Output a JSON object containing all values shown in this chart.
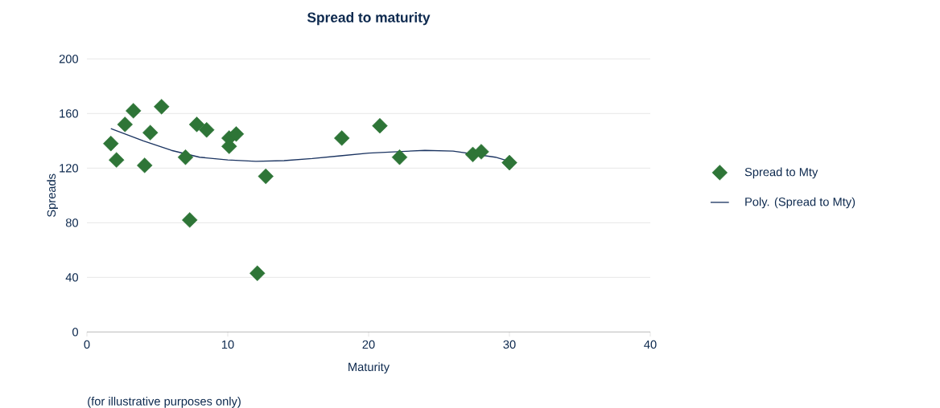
{
  "chart_data": {
    "type": "scatter",
    "title": "Spread to maturity",
    "xlabel": "Maturity",
    "ylabel": "Spreads",
    "annotations": [
      "(for illustrative purposes only)"
    ],
    "series": [
      {
        "name": "Spread to Mty",
        "color": "#2e7537",
        "marker": "diamond",
        "x": [
          1.7,
          2.1,
          2.7,
          3.3,
          4.1,
          4.5,
          5.3,
          7.0,
          7.3,
          7.8,
          8.5,
          10.1,
          10.1,
          10.6,
          12.1,
          12.7,
          18.1,
          20.8,
          22.2,
          27.4,
          28.0,
          30.0
        ],
        "values": [
          138,
          126,
          152,
          162,
          122,
          146,
          165,
          128,
          82,
          152,
          148,
          142,
          136,
          145,
          43,
          114,
          142,
          151,
          128,
          130,
          132,
          124
        ]
      },
      {
        "name": "Poly. (Spread to Mty)",
        "type": "line",
        "color": "#1b3461",
        "marker": "none",
        "x": [
          1.7,
          4,
          6,
          8,
          10,
          12,
          14,
          16,
          18,
          20,
          22,
          24,
          26,
          29,
          30
        ],
        "values": [
          149,
          140,
          133,
          128,
          126,
          125,
          125.5,
          127,
          129,
          131,
          132,
          133,
          132.5,
          128,
          125
        ]
      }
    ],
    "xlim": [
      0,
      40
    ],
    "ylim": [
      0,
      200
    ],
    "xticks": [
      0,
      10,
      20,
      30,
      40
    ],
    "yticks": [
      0,
      40,
      80,
      120,
      160,
      200
    ],
    "grid": "y",
    "legend": "right"
  }
}
